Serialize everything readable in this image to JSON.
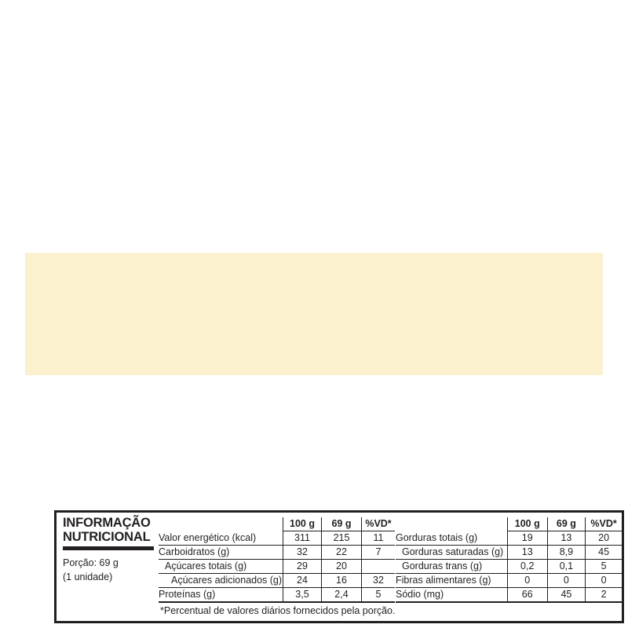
{
  "title_line1": "INFORMAÇÃO",
  "title_line2": "NUTRICIONAL",
  "portion_line1": "Porção: 69 g",
  "portion_line2": "(1 unidade)",
  "columns": [
    "100 g",
    "69 g",
    "%VD*"
  ],
  "left_rows": [
    {
      "label": "Valor energético (kcal)",
      "v100": "311",
      "vport": "215",
      "vd": "11",
      "indent": 0
    },
    {
      "label": "Carboidratos (g)",
      "v100": "32",
      "vport": "22",
      "vd": "7",
      "indent": 0
    },
    {
      "label": "Açúcares totais (g)",
      "v100": "29",
      "vport": "20",
      "vd": "",
      "indent": 1
    },
    {
      "label": "Açúcares adicionados (g)",
      "v100": "24",
      "vport": "16",
      "vd": "32",
      "indent": 2
    },
    {
      "label": "Proteínas (g)",
      "v100": "3,5",
      "vport": "2,4",
      "vd": "5",
      "indent": 0
    }
  ],
  "right_rows": [
    {
      "label": "Gorduras totais (g)",
      "v100": "19",
      "vport": "13",
      "vd": "20",
      "indent": 0
    },
    {
      "label": "Gorduras saturadas (g)",
      "v100": "13",
      "vport": "8,9",
      "vd": "45",
      "indent": 1
    },
    {
      "label": "Gorduras trans (g)",
      "v100": "0,2",
      "vport": "0,1",
      "vd": "5",
      "indent": 1
    },
    {
      "label": "Fibras alimentares (g)",
      "v100": "0",
      "vport": "0",
      "vd": "0",
      "indent": 0
    },
    {
      "label": "Sódio (mg)",
      "v100": "66",
      "vport": "45",
      "vd": "2",
      "indent": 0
    }
  ],
  "footnote": "*Percentual de valores diários fornecidos pela porção.",
  "colors": {
    "background": "#fbf1cf",
    "ink": "#231f20"
  }
}
